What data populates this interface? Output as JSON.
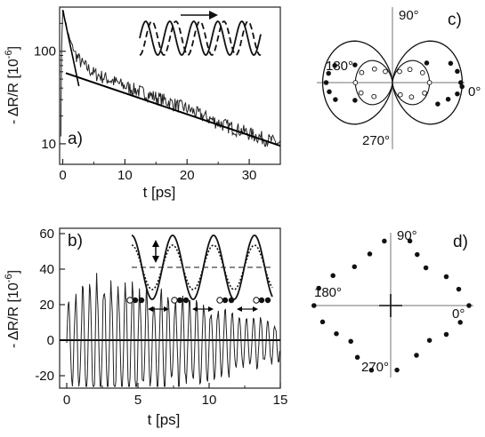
{
  "chart_data": [
    {
      "panel": "a)",
      "type": "line",
      "xlabel": "t [ps]",
      "ylabel": "- ΔR/R [10",
      "ylabel_exp": "-6",
      "ylabel_close": "]",
      "xlim": [
        -0.5,
        35
      ],
      "ylim": [
        6,
        300
      ],
      "yscale": "log",
      "xticks": [
        0,
        10,
        20,
        30
      ],
      "yticks": [
        10,
        100
      ],
      "series": [
        {
          "kind": "measured",
          "x": [
            0,
            0.5,
            1,
            2,
            3,
            5,
            8,
            10,
            15,
            20,
            25,
            30,
            35
          ],
          "y": [
            280,
            200,
            140,
            95,
            75,
            58,
            48,
            42,
            32,
            24,
            17,
            13,
            10
          ]
        },
        {
          "kind": "fit-slow",
          "x": [
            0.5,
            35
          ],
          "y": [
            58,
            9.5
          ]
        },
        {
          "kind": "fit-fast",
          "x": [
            0,
            2.6
          ],
          "y": [
            280,
            42
          ]
        }
      ]
    },
    {
      "panel": "b)",
      "type": "line",
      "xlabel": "t [ps]",
      "ylabel": "- ΔR/R [10",
      "ylabel_exp": "-6",
      "ylabel_close": "]",
      "xlim": [
        -0.5,
        15
      ],
      "ylim": [
        -27,
        63
      ],
      "xticks": [
        0,
        5,
        10,
        15
      ],
      "yticks": [
        -20,
        0,
        20,
        40,
        60
      ],
      "series": [
        {
          "kind": "oscillation",
          "period_ps": 0.5,
          "amplitude_peak": 35,
          "amplitude_end": 10
        }
      ]
    },
    {
      "panel": "c)",
      "type": "scatter",
      "coordinates": "polar",
      "angle_labels": [
        "90°",
        "180°",
        "0°",
        "270°"
      ],
      "series": [
        {
          "kind": "filled",
          "angles_deg": [
            0,
            12,
            22,
            35,
            150,
            160,
            170,
            180,
            190,
            200,
            210,
            330,
            340,
            348,
            356
          ],
          "radius": [
            0.98,
            0.95,
            0.9,
            0.6,
            0.62,
            0.88,
            0.93,
            0.95,
            0.92,
            0.87,
            0.62,
            0.75,
            0.85,
            0.95,
            1.0
          ]
        },
        {
          "kind": "open",
          "angles_deg": [
            0,
            20,
            40,
            60,
            120,
            140,
            160,
            180,
            200,
            220,
            300,
            320,
            340
          ],
          "radius": [
            0.52,
            0.45,
            0.32,
            0.2,
            0.2,
            0.33,
            0.46,
            0.52,
            0.47,
            0.34,
            0.22,
            0.35,
            0.48
          ]
        }
      ]
    },
    {
      "panel": "d)",
      "type": "scatter",
      "coordinates": "polar",
      "angle_labels": [
        "90°",
        "180°",
        "0°",
        "270°"
      ],
      "series": [
        {
          "kind": "filled",
          "angles_deg": [
            0,
            15,
            30,
            50,
            65,
            75,
            95,
            110,
            130,
            150,
            165,
            180,
            195,
            210,
            225,
            240,
            255,
            275,
            295,
            315,
            330,
            345
          ],
          "radius": [
            1.0,
            0.9,
            0.82,
            0.7,
            0.8,
            0.95,
            0.92,
            0.78,
            0.72,
            0.85,
            0.95,
            0.98,
            0.9,
            0.8,
            0.72,
            0.85,
            0.95,
            0.92,
            0.78,
            0.7,
            0.82,
            0.92
          ]
        }
      ]
    }
  ],
  "labels": {
    "panel_a": "a)",
    "panel_b": "b)",
    "panel_c": "c)",
    "panel_d": "d)"
  }
}
